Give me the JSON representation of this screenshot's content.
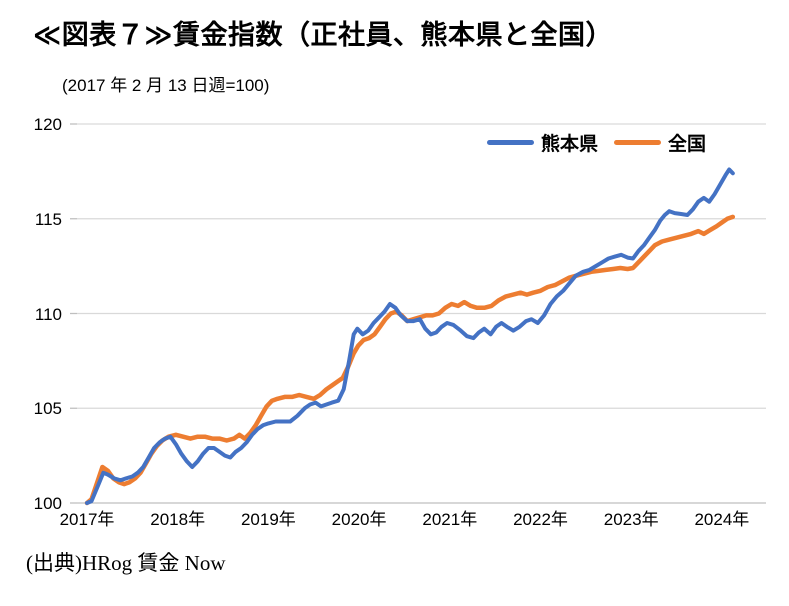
{
  "header": {
    "title": "≪図表７≫賃金指数（正社員、熊本県と全国）",
    "subtitle": "(2017 年 2 月 13 日週=100)"
  },
  "source_note": "(出典)HRog 賃金 Now",
  "colors": {
    "kumamoto": "#4472C4",
    "zenkoku": "#ED7D31",
    "gridline": "#D9D9D9",
    "axis": "#BFBFBF",
    "text": "#000000"
  },
  "chart_data": {
    "type": "line",
    "title": "≪図表７≫賃金指数（正社員、熊本県と全国）",
    "subtitle": "(2017 年 2 月 13 日週=100)",
    "grid": true,
    "legend_position": "top-right-inside",
    "xlabel": "",
    "ylabel": "",
    "x_axis": {
      "unit": "年",
      "tick_years": [
        2017,
        2018,
        2019,
        2020,
        2021,
        2022,
        2023,
        2024
      ],
      "tick_labels": [
        "2017年",
        "2018年",
        "2019年",
        "2020年",
        "2021年",
        "2022年",
        "2023年",
        "2024年"
      ]
    },
    "y_axis": {
      "min": 100,
      "max": 120,
      "step": 5,
      "ticks": [
        100,
        105,
        110,
        115,
        120
      ]
    },
    "series": [
      {
        "name": "熊本県",
        "color": "#4472C4",
        "points": [
          [
            2017.1,
            100.0
          ],
          [
            2017.15,
            100.1
          ],
          [
            2017.22,
            100.9
          ],
          [
            2017.28,
            101.6
          ],
          [
            2017.33,
            101.5
          ],
          [
            2017.4,
            101.3
          ],
          [
            2017.47,
            101.2
          ],
          [
            2017.53,
            101.3
          ],
          [
            2017.6,
            101.4
          ],
          [
            2017.66,
            101.6
          ],
          [
            2017.72,
            101.9
          ],
          [
            2017.78,
            102.4
          ],
          [
            2017.84,
            102.9
          ],
          [
            2017.9,
            103.2
          ],
          [
            2017.96,
            103.4
          ],
          [
            2018.02,
            103.5
          ],
          [
            2018.08,
            103.1
          ],
          [
            2018.14,
            102.6
          ],
          [
            2018.2,
            102.2
          ],
          [
            2018.26,
            101.9
          ],
          [
            2018.32,
            102.2
          ],
          [
            2018.38,
            102.6
          ],
          [
            2018.44,
            102.9
          ],
          [
            2018.5,
            102.9
          ],
          [
            2018.56,
            102.7
          ],
          [
            2018.62,
            102.5
          ],
          [
            2018.68,
            102.4
          ],
          [
            2018.74,
            102.7
          ],
          [
            2018.8,
            102.9
          ],
          [
            2018.86,
            103.2
          ],
          [
            2018.92,
            103.6
          ],
          [
            2018.98,
            103.9
          ],
          [
            2019.04,
            104.1
          ],
          [
            2019.1,
            104.2
          ],
          [
            2019.18,
            104.3
          ],
          [
            2019.26,
            104.3
          ],
          [
            2019.34,
            104.3
          ],
          [
            2019.42,
            104.6
          ],
          [
            2019.5,
            105.0
          ],
          [
            2019.56,
            105.2
          ],
          [
            2019.62,
            105.3
          ],
          [
            2019.68,
            105.1
          ],
          [
            2019.74,
            105.2
          ],
          [
            2019.8,
            105.3
          ],
          [
            2019.87,
            105.4
          ],
          [
            2019.93,
            106.0
          ],
          [
            2019.99,
            107.5
          ],
          [
            2020.04,
            108.9
          ],
          [
            2020.08,
            109.2
          ],
          [
            2020.14,
            108.9
          ],
          [
            2020.2,
            109.1
          ],
          [
            2020.26,
            109.5
          ],
          [
            2020.32,
            109.8
          ],
          [
            2020.38,
            110.1
          ],
          [
            2020.44,
            110.5
          ],
          [
            2020.5,
            110.3
          ],
          [
            2020.56,
            109.9
          ],
          [
            2020.63,
            109.6
          ],
          [
            2020.7,
            109.6
          ],
          [
            2020.77,
            109.7
          ],
          [
            2020.83,
            109.2
          ],
          [
            2020.89,
            108.9
          ],
          [
            2020.95,
            109.0
          ],
          [
            2021.01,
            109.3
          ],
          [
            2021.07,
            109.5
          ],
          [
            2021.14,
            109.4
          ],
          [
            2021.22,
            109.1
          ],
          [
            2021.29,
            108.8
          ],
          [
            2021.36,
            108.7
          ],
          [
            2021.42,
            109.0
          ],
          [
            2021.48,
            109.2
          ],
          [
            2021.55,
            108.9
          ],
          [
            2021.61,
            109.3
          ],
          [
            2021.67,
            109.5
          ],
          [
            2021.73,
            109.3
          ],
          [
            2021.8,
            109.1
          ],
          [
            2021.87,
            109.3
          ],
          [
            2021.94,
            109.6
          ],
          [
            2022.0,
            109.7
          ],
          [
            2022.07,
            109.5
          ],
          [
            2022.14,
            109.9
          ],
          [
            2022.21,
            110.5
          ],
          [
            2022.28,
            110.9
          ],
          [
            2022.35,
            111.2
          ],
          [
            2022.42,
            111.6
          ],
          [
            2022.49,
            112.0
          ],
          [
            2022.57,
            112.2
          ],
          [
            2022.64,
            112.3
          ],
          [
            2022.71,
            112.5
          ],
          [
            2022.78,
            112.7
          ],
          [
            2022.85,
            112.9
          ],
          [
            2022.92,
            113.0
          ],
          [
            2022.99,
            113.1
          ],
          [
            2023.06,
            112.95
          ],
          [
            2023.12,
            112.9
          ],
          [
            2023.18,
            113.3
          ],
          [
            2023.24,
            113.6
          ],
          [
            2023.3,
            114.0
          ],
          [
            2023.36,
            114.4
          ],
          [
            2023.42,
            114.9
          ],
          [
            2023.47,
            115.2
          ],
          [
            2023.52,
            115.4
          ],
          [
            2023.58,
            115.3
          ],
          [
            2023.65,
            115.25
          ],
          [
            2023.72,
            115.2
          ],
          [
            2023.78,
            115.5
          ],
          [
            2023.84,
            115.9
          ],
          [
            2023.9,
            116.1
          ],
          [
            2023.96,
            115.9
          ],
          [
            2024.02,
            116.3
          ],
          [
            2024.08,
            116.8
          ],
          [
            2024.14,
            117.3
          ],
          [
            2024.18,
            117.6
          ],
          [
            2024.22,
            117.4
          ]
        ]
      },
      {
        "name": "全国",
        "color": "#ED7D31",
        "points": [
          [
            2017.1,
            100.0
          ],
          [
            2017.15,
            100.2
          ],
          [
            2017.22,
            101.2
          ],
          [
            2017.27,
            101.9
          ],
          [
            2017.33,
            101.7
          ],
          [
            2017.39,
            101.3
          ],
          [
            2017.45,
            101.1
          ],
          [
            2017.51,
            101.0
          ],
          [
            2017.57,
            101.1
          ],
          [
            2017.63,
            101.3
          ],
          [
            2017.69,
            101.6
          ],
          [
            2017.75,
            102.1
          ],
          [
            2017.81,
            102.6
          ],
          [
            2017.87,
            103.0
          ],
          [
            2017.93,
            103.3
          ],
          [
            2018.0,
            103.5
          ],
          [
            2018.08,
            103.6
          ],
          [
            2018.16,
            103.5
          ],
          [
            2018.24,
            103.4
          ],
          [
            2018.32,
            103.5
          ],
          [
            2018.4,
            103.5
          ],
          [
            2018.48,
            103.4
          ],
          [
            2018.56,
            103.4
          ],
          [
            2018.64,
            103.3
          ],
          [
            2018.72,
            103.4
          ],
          [
            2018.78,
            103.6
          ],
          [
            2018.84,
            103.4
          ],
          [
            2018.9,
            103.7
          ],
          [
            2018.96,
            104.1
          ],
          [
            2019.02,
            104.6
          ],
          [
            2019.08,
            105.1
          ],
          [
            2019.14,
            105.4
          ],
          [
            2019.2,
            105.5
          ],
          [
            2019.28,
            105.6
          ],
          [
            2019.36,
            105.6
          ],
          [
            2019.44,
            105.7
          ],
          [
            2019.52,
            105.6
          ],
          [
            2019.6,
            105.5
          ],
          [
            2019.67,
            105.7
          ],
          [
            2019.74,
            106.0
          ],
          [
            2019.8,
            106.2
          ],
          [
            2019.86,
            106.4
          ],
          [
            2019.92,
            106.6
          ],
          [
            2019.98,
            107.2
          ],
          [
            2020.04,
            107.9
          ],
          [
            2020.09,
            108.3
          ],
          [
            2020.15,
            108.6
          ],
          [
            2020.21,
            108.7
          ],
          [
            2020.27,
            108.9
          ],
          [
            2020.33,
            109.3
          ],
          [
            2020.39,
            109.7
          ],
          [
            2020.45,
            110.0
          ],
          [
            2020.51,
            110.1
          ],
          [
            2020.57,
            109.9
          ],
          [
            2020.63,
            109.6
          ],
          [
            2020.7,
            109.7
          ],
          [
            2020.77,
            109.8
          ],
          [
            2020.84,
            109.9
          ],
          [
            2020.91,
            109.9
          ],
          [
            2020.98,
            110.0
          ],
          [
            2021.05,
            110.3
          ],
          [
            2021.12,
            110.5
          ],
          [
            2021.19,
            110.4
          ],
          [
            2021.26,
            110.6
          ],
          [
            2021.33,
            110.4
          ],
          [
            2021.4,
            110.3
          ],
          [
            2021.48,
            110.3
          ],
          [
            2021.56,
            110.4
          ],
          [
            2021.64,
            110.7
          ],
          [
            2021.72,
            110.9
          ],
          [
            2021.8,
            111.0
          ],
          [
            2021.88,
            111.1
          ],
          [
            2021.95,
            111.0
          ],
          [
            2022.02,
            111.1
          ],
          [
            2022.1,
            111.2
          ],
          [
            2022.18,
            111.4
          ],
          [
            2022.26,
            111.5
          ],
          [
            2022.34,
            111.7
          ],
          [
            2022.42,
            111.9
          ],
          [
            2022.5,
            112.0
          ],
          [
            2022.58,
            112.1
          ],
          [
            2022.66,
            112.2
          ],
          [
            2022.74,
            112.25
          ],
          [
            2022.82,
            112.3
          ],
          [
            2022.9,
            112.35
          ],
          [
            2022.98,
            112.4
          ],
          [
            2023.06,
            112.35
          ],
          [
            2023.12,
            112.4
          ],
          [
            2023.2,
            112.8
          ],
          [
            2023.28,
            113.2
          ],
          [
            2023.36,
            113.6
          ],
          [
            2023.44,
            113.8
          ],
          [
            2023.52,
            113.9
          ],
          [
            2023.6,
            114.0
          ],
          [
            2023.68,
            114.1
          ],
          [
            2023.76,
            114.2
          ],
          [
            2023.84,
            114.35
          ],
          [
            2023.9,
            114.2
          ],
          [
            2023.97,
            114.4
          ],
          [
            2024.04,
            114.6
          ],
          [
            2024.1,
            114.8
          ],
          [
            2024.16,
            115.0
          ],
          [
            2024.22,
            115.1
          ]
        ]
      }
    ]
  }
}
